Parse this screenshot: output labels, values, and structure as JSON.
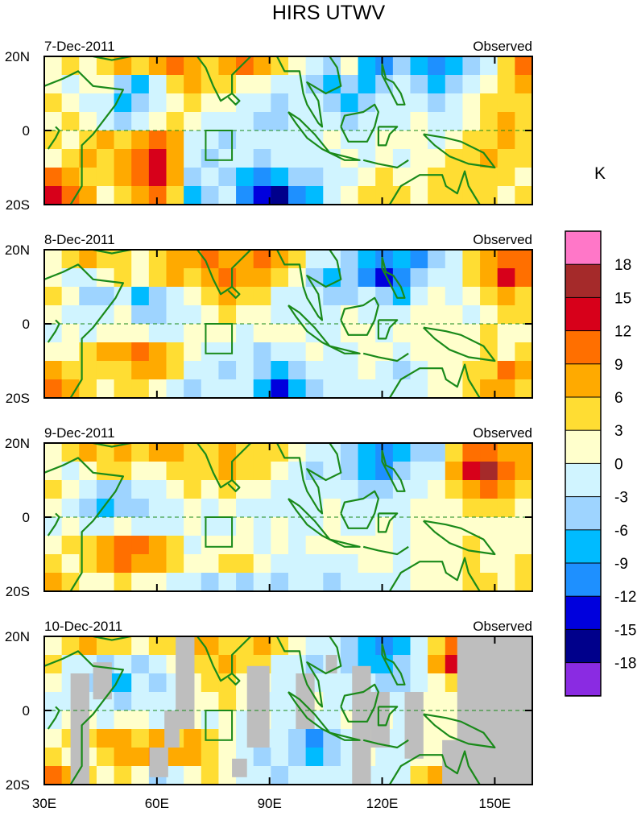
{
  "chart_data": {
    "type": "heatmap",
    "title": "HIRS UTWV",
    "units_label": "K",
    "x_ticks": [
      {
        "value": 30,
        "label": "30E"
      },
      {
        "value": 60,
        "label": "60E"
      },
      {
        "value": 90,
        "label": "90E"
      },
      {
        "value": 120,
        "label": "120E"
      },
      {
        "value": 150,
        "label": "150E"
      }
    ],
    "y_ticks": [
      {
        "value": 20,
        "label": "20N"
      },
      {
        "value": 0,
        "label": "0"
      },
      {
        "value": -20,
        "label": "20S"
      }
    ],
    "xlim": [
      30,
      160
    ],
    "ylim": [
      -20,
      20
    ],
    "colorbar": {
      "labels": [
        "18",
        "15",
        "12",
        "9",
        "6",
        "3",
        "0",
        "-3",
        "-6",
        "-9",
        "-12",
        "-15",
        "-18"
      ],
      "colors": [
        "#ff77c8",
        "#a52a2a",
        "#d7001a",
        "#ff6f00",
        "#ffaa00",
        "#ffdd33",
        "#ffffcc",
        "#d0f4ff",
        "#9ed4ff",
        "#00bbff",
        "#1e90ff",
        "#0000dd",
        "#00008b",
        "#8a2be2"
      ]
    },
    "box_region": {
      "lon": [
        73,
        80
      ],
      "lat": [
        -8,
        0
      ]
    },
    "panels": [
      {
        "date": "7-Dec-2011",
        "label": "Observed",
        "grid": [
          [
            1,
            3,
            1,
            3,
            6,
            3,
            6,
            9,
            6,
            3,
            6,
            9,
            6,
            3,
            1,
            -3,
            -6,
            1,
            -9,
            -12,
            -6,
            -9,
            -12,
            -9,
            -6,
            -3,
            3,
            9
          ],
          [
            1,
            -3,
            1,
            1,
            -6,
            -9,
            -3,
            3,
            6,
            3,
            3,
            1,
            1,
            -3,
            -3,
            -6,
            -9,
            -6,
            -9,
            -6,
            -3,
            -6,
            -9,
            -6,
            -3,
            1,
            3,
            6
          ],
          [
            3,
            1,
            -3,
            -3,
            -9,
            -6,
            -3,
            1,
            3,
            1,
            1,
            -3,
            -3,
            -6,
            -3,
            -3,
            -6,
            -9,
            -6,
            -3,
            -3,
            -3,
            -6,
            -3,
            1,
            3,
            3,
            3
          ],
          [
            1,
            3,
            1,
            -3,
            -6,
            -3,
            1,
            3,
            1,
            -3,
            -3,
            -3,
            -6,
            -6,
            -3,
            -3,
            -3,
            -6,
            -3,
            -3,
            -3,
            1,
            -3,
            -3,
            1,
            3,
            6,
            3
          ],
          [
            3,
            1,
            3,
            6,
            3,
            6,
            9,
            6,
            -3,
            -3,
            -6,
            -3,
            -3,
            -3,
            -3,
            -3,
            1,
            -3,
            -3,
            1,
            1,
            1,
            -3,
            1,
            3,
            3,
            6,
            3
          ],
          [
            1,
            3,
            6,
            3,
            6,
            9,
            12,
            6,
            -3,
            -6,
            -3,
            -3,
            -6,
            -3,
            -3,
            -3,
            -3,
            1,
            -3,
            1,
            -3,
            1,
            1,
            3,
            3,
            6,
            3,
            3
          ],
          [
            9,
            6,
            3,
            3,
            6,
            9,
            12,
            6,
            -6,
            -3,
            -6,
            -9,
            -12,
            -9,
            -6,
            -6,
            -3,
            -3,
            1,
            3,
            1,
            1,
            3,
            3,
            3,
            3,
            3,
            1
          ],
          [
            12,
            9,
            6,
            1,
            3,
            6,
            9,
            3,
            -9,
            -6,
            -3,
            -12,
            -15,
            -18,
            -12,
            -9,
            -3,
            1,
            3,
            3,
            3,
            1,
            3,
            3,
            3,
            3,
            1,
            3
          ]
        ]
      },
      {
        "date": "8-Dec-2011",
        "label": "Observed",
        "grid": [
          [
            1,
            3,
            6,
            3,
            3,
            1,
            3,
            6,
            6,
            9,
            6,
            6,
            9,
            6,
            3,
            -3,
            -3,
            -6,
            -9,
            -12,
            -9,
            -12,
            -6,
            -3,
            3,
            6,
            9,
            9
          ],
          [
            1,
            -3,
            -3,
            1,
            3,
            1,
            3,
            6,
            3,
            6,
            9,
            6,
            6,
            3,
            1,
            -6,
            -9,
            -6,
            -12,
            -15,
            -12,
            -6,
            -3,
            -3,
            3,
            6,
            12,
            9
          ],
          [
            3,
            1,
            -6,
            -6,
            -3,
            -9,
            -6,
            -3,
            1,
            3,
            6,
            3,
            3,
            -3,
            -3,
            -3,
            -6,
            -6,
            -3,
            -6,
            -9,
            -3,
            1,
            -3,
            1,
            3,
            6,
            3
          ],
          [
            1,
            -3,
            -3,
            -3,
            1,
            -6,
            -6,
            -3,
            -3,
            1,
            3,
            1,
            1,
            -3,
            -3,
            -3,
            -3,
            1,
            -3,
            -3,
            -3,
            1,
            1,
            1,
            -3,
            1,
            3,
            3
          ],
          [
            -3,
            1,
            -3,
            1,
            1,
            1,
            -3,
            -3,
            1,
            1,
            1,
            -3,
            1,
            1,
            1,
            -3,
            -3,
            1,
            1,
            -3,
            1,
            1,
            1,
            1,
            1,
            3,
            1,
            1
          ],
          [
            1,
            1,
            3,
            6,
            6,
            9,
            6,
            3,
            1,
            -3,
            -3,
            -3,
            -6,
            -3,
            -3,
            1,
            -3,
            -3,
            1,
            1,
            -3,
            1,
            1,
            1,
            1,
            3,
            1,
            3
          ],
          [
            6,
            3,
            3,
            3,
            3,
            6,
            6,
            3,
            -3,
            -3,
            -6,
            -3,
            -6,
            -9,
            -6,
            -3,
            -3,
            -3,
            1,
            -3,
            -6,
            -3,
            1,
            1,
            3,
            3,
            9,
            6
          ],
          [
            9,
            6,
            3,
            1,
            3,
            3,
            1,
            -3,
            -6,
            -3,
            -3,
            -3,
            -9,
            -15,
            -9,
            -6,
            -3,
            -3,
            -3,
            -3,
            -3,
            -3,
            1,
            1,
            3,
            6,
            6,
            3
          ]
        ]
      },
      {
        "date": "9-Dec-2011",
        "label": "Observed",
        "grid": [
          [
            1,
            3,
            6,
            3,
            6,
            3,
            6,
            6,
            3,
            3,
            6,
            3,
            3,
            3,
            1,
            -3,
            -3,
            -6,
            -9,
            -12,
            -9,
            -6,
            -6,
            3,
            9,
            9,
            6,
            6
          ],
          [
            1,
            -3,
            1,
            3,
            3,
            1,
            1,
            3,
            3,
            3,
            6,
            3,
            3,
            1,
            -3,
            -6,
            -3,
            -6,
            -9,
            -12,
            -6,
            -3,
            -3,
            6,
            12,
            15,
            9,
            6
          ],
          [
            3,
            1,
            -3,
            -6,
            -6,
            -3,
            -3,
            1,
            3,
            1,
            3,
            1,
            1,
            -3,
            -3,
            -3,
            -3,
            -3,
            -6,
            -6,
            -3,
            -3,
            1,
            3,
            6,
            9,
            6,
            3
          ],
          [
            1,
            -3,
            -6,
            -9,
            -6,
            -6,
            -3,
            -3,
            1,
            -3,
            1,
            -3,
            -3,
            -3,
            -3,
            -3,
            1,
            -3,
            -3,
            -3,
            -3,
            1,
            1,
            1,
            3,
            3,
            3,
            1
          ],
          [
            -3,
            1,
            -3,
            -3,
            1,
            -3,
            -3,
            -3,
            1,
            -3,
            -3,
            1,
            -3,
            1,
            -3,
            -3,
            1,
            -3,
            -3,
            1,
            -3,
            1,
            1,
            1,
            1,
            1,
            1,
            1
          ],
          [
            1,
            3,
            3,
            6,
            9,
            9,
            6,
            3,
            -3,
            1,
            1,
            1,
            -3,
            1,
            -3,
            1,
            1,
            1,
            1,
            1,
            -3,
            1,
            1,
            1,
            3,
            1,
            1,
            1
          ],
          [
            3,
            1,
            3,
            6,
            9,
            6,
            6,
            3,
            1,
            1,
            3,
            3,
            1,
            -3,
            -3,
            -3,
            -3,
            -3,
            1,
            1,
            -3,
            1,
            1,
            1,
            3,
            1,
            1,
            3
          ],
          [
            6,
            3,
            1,
            1,
            3,
            1,
            1,
            -3,
            -3,
            -6,
            -3,
            -6,
            -3,
            -6,
            -3,
            -3,
            -6,
            -3,
            -3,
            -3,
            -3,
            1,
            1,
            1,
            3,
            3,
            1,
            3
          ]
        ]
      },
      {
        "date": "10-Dec-2011",
        "label": "Observed",
        "grid": [
          [
            1,
            3,
            6,
            3,
            3,
            1,
            3,
            3,
            6,
            6,
            3,
            3,
            6,
            3,
            1,
            -3,
            -3,
            -6,
            -9,
            -12,
            -9,
            -3,
            3,
            9,
            3,
            1,
            1,
            1
          ],
          [
            3,
            -3,
            -3,
            -6,
            -3,
            -6,
            -3,
            1,
            3,
            3,
            6,
            3,
            3,
            -3,
            -3,
            -6,
            -3,
            -6,
            -9,
            -9,
            -6,
            -3,
            6,
            12,
            3,
            1,
            1,
            1
          ],
          [
            1,
            -3,
            -6,
            -9,
            -9,
            -3,
            -6,
            -3,
            1,
            3,
            3,
            1,
            1,
            -3,
            -3,
            -3,
            -3,
            -3,
            -3,
            -6,
            -6,
            -3,
            1,
            3,
            1,
            1,
            1,
            1
          ],
          [
            -3,
            -3,
            -3,
            -3,
            -6,
            -3,
            -3,
            -3,
            1,
            1,
            3,
            1,
            -3,
            -3,
            -3,
            1,
            -3,
            -3,
            -3,
            -3,
            -3,
            1,
            1,
            1,
            1,
            1,
            1,
            1
          ],
          [
            -3,
            1,
            1,
            -3,
            1,
            1,
            -3,
            -3,
            1,
            -3,
            1,
            -3,
            1,
            -3,
            -3,
            -3,
            -3,
            1,
            -3,
            1,
            -3,
            1,
            1,
            1,
            1,
            1,
            1,
            1
          ],
          [
            1,
            3,
            3,
            6,
            6,
            3,
            6,
            3,
            6,
            3,
            1,
            -3,
            -3,
            -3,
            -6,
            -12,
            -6,
            -3,
            1,
            -3,
            -3,
            1,
            1,
            1,
            1,
            1,
            1,
            1
          ],
          [
            3,
            1,
            1,
            3,
            6,
            6,
            9,
            6,
            6,
            3,
            1,
            -3,
            -6,
            -3,
            -6,
            -9,
            -6,
            -3,
            1,
            -3,
            -3,
            1,
            1,
            1,
            1,
            1,
            1,
            1
          ],
          [
            9,
            6,
            3,
            1,
            3,
            1,
            -6,
            -3,
            1,
            3,
            1,
            -3,
            -3,
            -6,
            -3,
            -3,
            -3,
            -3,
            -3,
            -3,
            -3,
            3,
            6,
            3,
            1,
            1,
            1,
            1
          ]
        ],
        "missing_rects": [
          {
            "lon": [
              37,
              42
            ],
            "lat": [
              -20,
              10
            ]
          },
          {
            "lon": [
              43,
              48
            ],
            "lat": [
              3,
              13
            ]
          },
          {
            "lon": [
              62,
              66
            ],
            "lat": [
              -10,
              0
            ]
          },
          {
            "lon": [
              65,
              70
            ],
            "lat": [
              -5,
              20
            ]
          },
          {
            "lon": [
              58,
              63
            ],
            "lat": [
              -18,
              -10
            ]
          },
          {
            "lon": [
              80,
              84
            ],
            "lat": [
              -18,
              -13
            ]
          },
          {
            "lon": [
              84,
              90
            ],
            "lat": [
              -10,
              12
            ]
          },
          {
            "lon": [
              97,
              102
            ],
            "lat": [
              -5,
              10
            ]
          },
          {
            "lon": [
              105,
              108
            ],
            "lat": [
              10,
              15
            ]
          },
          {
            "lon": [
              112,
              117
            ],
            "lat": [
              -20,
              12
            ]
          },
          {
            "lon": [
              117,
              122
            ],
            "lat": [
              -10,
              5
            ]
          },
          {
            "lon": [
              126,
              131
            ],
            "lat": [
              -13,
              5
            ]
          },
          {
            "lon": [
              136,
              142
            ],
            "lat": [
              -20,
              -8
            ]
          },
          {
            "lon": [
              140,
              160
            ],
            "lat": [
              -20,
              20
            ]
          }
        ]
      }
    ]
  }
}
